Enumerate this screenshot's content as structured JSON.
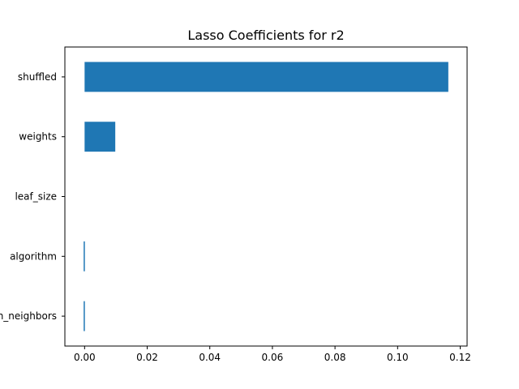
{
  "chart_data": {
    "type": "bar",
    "orientation": "horizontal",
    "title": "Lasso Coefficients for r2",
    "xlabel": "",
    "ylabel": "",
    "categories": [
      "n_neighbors",
      "algorithm",
      "leaf_size",
      "weights",
      "shuffled"
    ],
    "values": [
      -0.0003,
      -0.0003,
      0.0,
      0.0098,
      0.1162
    ],
    "xlim": [
      -0.0063,
      0.1222
    ],
    "xticks": [
      0.0,
      0.02,
      0.04,
      0.06,
      0.08,
      0.1,
      0.12
    ],
    "xtick_labels": [
      "0.00",
      "0.02",
      "0.04",
      "0.06",
      "0.08",
      "0.10",
      "0.12"
    ],
    "grid": false,
    "legend": "none",
    "bar_color": "#1f77b4"
  }
}
